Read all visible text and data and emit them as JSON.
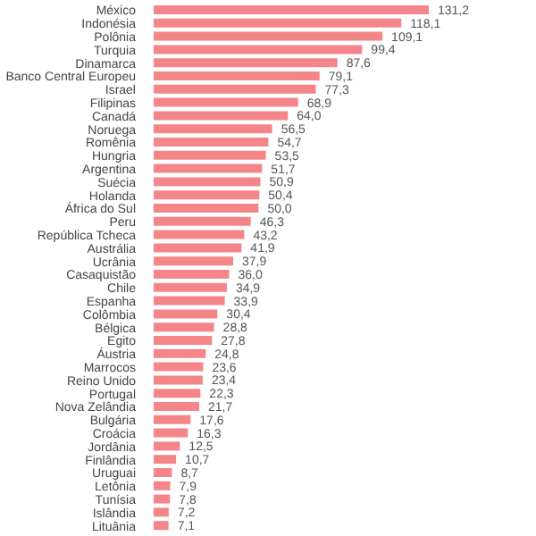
{
  "chart_data": {
    "type": "bar",
    "orientation": "horizontal",
    "categories": [
      "México",
      "Indonésia",
      "Polônia",
      "Turquia",
      "Dinamarca",
      "Banco Central Europeu",
      "Israel",
      "Filipinas",
      "Canadá",
      "Noruega",
      "Romênia",
      "Hungria",
      "Argentina",
      "Suécia",
      "Holanda",
      "África do Sul",
      "Peru",
      "República Tcheca",
      "Austrália",
      "Ucrânia",
      "Casaquistão",
      "Chile",
      "Espanha",
      "Colômbia",
      "Bélgica",
      "Egito",
      "Áustria",
      "Marrocos",
      "Reino Unido",
      "Portugal",
      "Nova Zelândia",
      "Bulgária",
      "Croácia",
      "Jordânia",
      "Finlândia",
      "Uruguai",
      "Letônia",
      "Tunísia",
      "Islândia",
      "Lituânia"
    ],
    "values": [
      131.2,
      118.1,
      109.1,
      99.4,
      87.6,
      79.1,
      77.3,
      68.9,
      64.0,
      56.5,
      54.7,
      53.5,
      51.7,
      50.9,
      50.4,
      50.0,
      46.3,
      43.2,
      41.9,
      37.9,
      36.0,
      34.9,
      33.9,
      30.4,
      28.8,
      27.8,
      24.8,
      23.6,
      23.4,
      22.3,
      21.7,
      17.6,
      16.3,
      12.5,
      10.7,
      8.7,
      7.9,
      7.8,
      7.2,
      7.1
    ],
    "value_labels": [
      "131,2",
      "118,1",
      "109,1",
      "99,4",
      "87,6",
      "79,1",
      "77,3",
      "68,9",
      "64,0",
      "56,5",
      "54,7",
      "53,5",
      "51,7",
      "50,9",
      "50,4",
      "50,0",
      "46,3",
      "43,2",
      "41,9",
      "37,9",
      "36,0",
      "34,9",
      "33,9",
      "30,4",
      "28,8",
      "27,8",
      "24,8",
      "23,6",
      "23,4",
      "22,3",
      "21,7",
      "17,6",
      "16,3",
      "12,5",
      "10,7",
      "8,7",
      "7,9",
      "7,8",
      "7,2",
      "7,1"
    ],
    "color": "#f4868a"
  }
}
